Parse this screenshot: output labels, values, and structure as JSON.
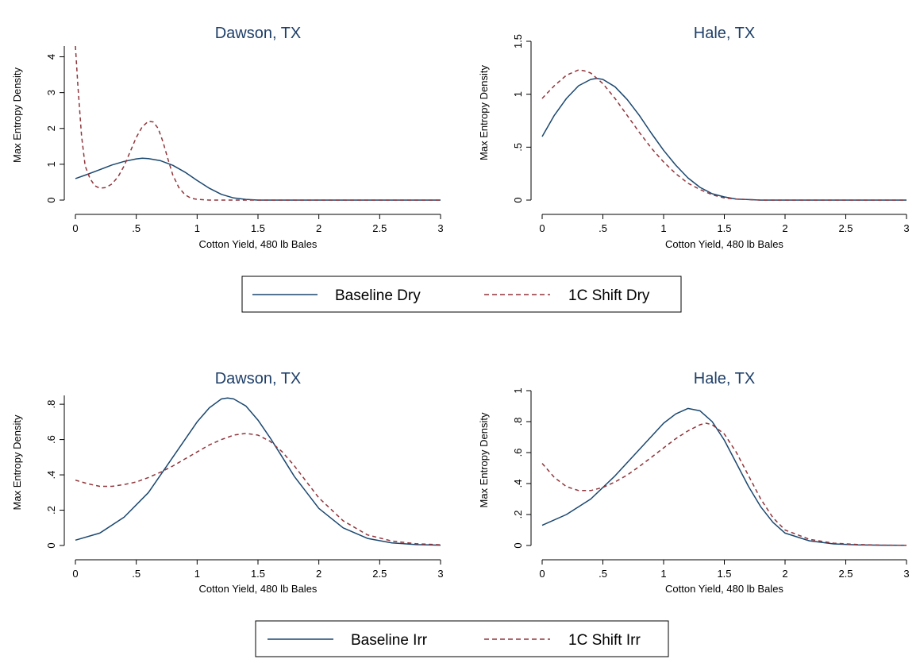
{
  "colors": {
    "baseline": "#1a476f",
    "shift": "#90353b",
    "title": "#1f3f68"
  },
  "legends": [
    {
      "baseline_label": "Baseline Dry",
      "shift_label": "1C Shift Dry"
    },
    {
      "baseline_label": "Baseline Irr",
      "shift_label": "1C Shift Irr"
    }
  ],
  "chart_data": [
    {
      "type": "line",
      "title": "Dawson, TX",
      "xlabel": "Cotton Yield, 480 lb Bales",
      "ylabel": "Max Entropy Density",
      "xlim": [
        0,
        3
      ],
      "ylim": [
        0,
        4.3
      ],
      "xticks": [
        0,
        0.5,
        1,
        1.5,
        2,
        2.5,
        3
      ],
      "xtick_labels": [
        "0",
        ".5",
        "1",
        "1.5",
        "2",
        "2.5",
        "3"
      ],
      "yticks": [
        0,
        1,
        2,
        3,
        4
      ],
      "ytick_labels": [
        "0",
        "1",
        "2",
        "3",
        "4"
      ],
      "series": [
        {
          "name": "Baseline Dry",
          "style": "solid",
          "x": [
            0,
            0.1,
            0.2,
            0.3,
            0.4,
            0.5,
            0.55,
            0.6,
            0.7,
            0.8,
            0.9,
            1.0,
            1.1,
            1.2,
            1.3,
            1.4,
            1.5,
            2.0,
            2.5,
            3.0
          ],
          "y": [
            0.6,
            0.72,
            0.85,
            0.98,
            1.08,
            1.15,
            1.17,
            1.16,
            1.1,
            0.97,
            0.78,
            0.55,
            0.33,
            0.16,
            0.06,
            0.02,
            0.0,
            0.0,
            0.0,
            0.0
          ]
        },
        {
          "name": "1C Shift Dry",
          "style": "dashed",
          "x": [
            0,
            0.02,
            0.05,
            0.08,
            0.12,
            0.16,
            0.2,
            0.25,
            0.3,
            0.35,
            0.4,
            0.45,
            0.5,
            0.55,
            0.6,
            0.64,
            0.68,
            0.72,
            0.76,
            0.8,
            0.85,
            0.9,
            0.95,
            1.0,
            1.1,
            1.5,
            2.0,
            2.5,
            3.0
          ],
          "y": [
            4.3,
            3.2,
            1.8,
            0.95,
            0.6,
            0.4,
            0.33,
            0.35,
            0.45,
            0.65,
            0.95,
            1.35,
            1.75,
            2.05,
            2.2,
            2.18,
            2.0,
            1.62,
            1.15,
            0.7,
            0.35,
            0.15,
            0.05,
            0.02,
            0.0,
            0.0,
            0.0,
            0.0,
            0.0
          ]
        }
      ]
    },
    {
      "type": "line",
      "title": "Hale, TX",
      "xlabel": "Cotton Yield, 480 lb Bales",
      "ylabel": "Max Entropy Density",
      "xlim": [
        0,
        3
      ],
      "ylim": [
        0,
        1.5
      ],
      "xticks": [
        0,
        0.5,
        1,
        1.5,
        2,
        2.5,
        3
      ],
      "xtick_labels": [
        "0",
        ".5",
        "1",
        "1.5",
        "2",
        "2.5",
        "3"
      ],
      "yticks": [
        0,
        0.5,
        1,
        1.5
      ],
      "ytick_labels": [
        "0",
        ".5",
        "1",
        "1.5"
      ],
      "series": [
        {
          "name": "Baseline Dry",
          "style": "solid",
          "x": [
            0,
            0.1,
            0.2,
            0.3,
            0.4,
            0.45,
            0.5,
            0.6,
            0.7,
            0.8,
            0.9,
            1.0,
            1.1,
            1.2,
            1.3,
            1.4,
            1.5,
            1.6,
            1.8,
            2.0,
            2.5,
            3.0
          ],
          "y": [
            0.6,
            0.8,
            0.96,
            1.08,
            1.14,
            1.15,
            1.14,
            1.07,
            0.95,
            0.8,
            0.63,
            0.47,
            0.33,
            0.21,
            0.12,
            0.06,
            0.03,
            0.01,
            0.0,
            0.0,
            0.0,
            0.0
          ]
        },
        {
          "name": "1C Shift Dry",
          "style": "dashed",
          "x": [
            0,
            0.1,
            0.2,
            0.3,
            0.35,
            0.4,
            0.5,
            0.6,
            0.7,
            0.8,
            0.9,
            1.0,
            1.1,
            1.2,
            1.3,
            1.4,
            1.5,
            1.6,
            1.8,
            2.0,
            2.5,
            3.0
          ],
          "y": [
            0.96,
            1.08,
            1.18,
            1.23,
            1.22,
            1.2,
            1.1,
            0.96,
            0.8,
            0.64,
            0.49,
            0.36,
            0.25,
            0.16,
            0.1,
            0.05,
            0.02,
            0.01,
            0.0,
            0.0,
            0.0,
            0.0
          ]
        }
      ]
    },
    {
      "type": "line",
      "title": "Dawson, TX",
      "xlabel": "Cotton Yield, 480 lb Bales",
      "ylabel": "Max Entropy Density",
      "xlim": [
        0,
        3
      ],
      "ylim": [
        0,
        0.85
      ],
      "xticks": [
        0,
        0.5,
        1,
        1.5,
        2,
        2.5,
        3
      ],
      "xtick_labels": [
        "0",
        ".5",
        "1",
        "1.5",
        "2",
        "2.5",
        "3"
      ],
      "yticks": [
        0,
        0.2,
        0.4,
        0.6,
        0.8
      ],
      "ytick_labels": [
        "0",
        ".2",
        ".4",
        ".6",
        ".8"
      ],
      "series": [
        {
          "name": "Baseline Irr",
          "style": "solid",
          "x": [
            0,
            0.2,
            0.4,
            0.6,
            0.8,
            1.0,
            1.1,
            1.2,
            1.25,
            1.3,
            1.4,
            1.5,
            1.6,
            1.7,
            1.8,
            2.0,
            2.2,
            2.4,
            2.6,
            2.8,
            3.0
          ],
          "y": [
            0.03,
            0.07,
            0.16,
            0.3,
            0.5,
            0.7,
            0.78,
            0.83,
            0.835,
            0.83,
            0.79,
            0.71,
            0.61,
            0.5,
            0.39,
            0.21,
            0.1,
            0.04,
            0.015,
            0.005,
            0.002
          ]
        },
        {
          "name": "1C Shift Irr",
          "style": "dashed",
          "x": [
            0,
            0.1,
            0.2,
            0.3,
            0.4,
            0.5,
            0.6,
            0.7,
            0.8,
            0.9,
            1.0,
            1.1,
            1.2,
            1.3,
            1.4,
            1.5,
            1.6,
            1.7,
            1.8,
            1.9,
            2.0,
            2.2,
            2.4,
            2.6,
            2.8,
            3.0
          ],
          "y": [
            0.37,
            0.35,
            0.335,
            0.335,
            0.345,
            0.36,
            0.385,
            0.415,
            0.45,
            0.49,
            0.53,
            0.57,
            0.6,
            0.625,
            0.635,
            0.625,
            0.59,
            0.53,
            0.45,
            0.36,
            0.27,
            0.14,
            0.06,
            0.025,
            0.01,
            0.004
          ]
        }
      ]
    },
    {
      "type": "line",
      "title": "Hale, TX",
      "xlabel": "Cotton Yield, 480 lb Bales",
      "ylabel": "Max Entropy Density",
      "xlim": [
        0,
        3
      ],
      "ylim": [
        0,
        1.0
      ],
      "xticks": [
        0,
        0.5,
        1,
        1.5,
        2,
        2.5,
        3
      ],
      "xtick_labels": [
        "0",
        ".5",
        "1",
        "1.5",
        "2",
        "2.5",
        "3"
      ],
      "yticks": [
        0,
        0.2,
        0.4,
        0.6,
        0.8,
        1
      ],
      "ytick_labels": [
        "0",
        ".2",
        ".4",
        ".6",
        ".8",
        "1"
      ],
      "series": [
        {
          "name": "Baseline Irr",
          "style": "solid",
          "x": [
            0,
            0.2,
            0.4,
            0.6,
            0.8,
            1.0,
            1.1,
            1.2,
            1.3,
            1.4,
            1.5,
            1.6,
            1.7,
            1.8,
            1.9,
            2.0,
            2.2,
            2.4,
            2.6,
            2.8,
            3.0
          ],
          "y": [
            0.13,
            0.2,
            0.3,
            0.45,
            0.62,
            0.79,
            0.85,
            0.885,
            0.87,
            0.8,
            0.68,
            0.53,
            0.38,
            0.25,
            0.15,
            0.08,
            0.03,
            0.01,
            0.004,
            0.002,
            0.001
          ]
        },
        {
          "name": "1C Shift Irr",
          "style": "dashed",
          "x": [
            0,
            0.1,
            0.2,
            0.3,
            0.4,
            0.5,
            0.6,
            0.7,
            0.8,
            0.9,
            1.0,
            1.1,
            1.2,
            1.3,
            1.35,
            1.4,
            1.5,
            1.6,
            1.7,
            1.8,
            1.9,
            2.0,
            2.2,
            2.4,
            2.6,
            2.8,
            3.0
          ],
          "y": [
            0.53,
            0.44,
            0.38,
            0.355,
            0.355,
            0.375,
            0.41,
            0.455,
            0.51,
            0.57,
            0.63,
            0.69,
            0.74,
            0.78,
            0.79,
            0.78,
            0.72,
            0.6,
            0.45,
            0.3,
            0.18,
            0.1,
            0.04,
            0.015,
            0.006,
            0.002,
            0.001
          ]
        }
      ]
    }
  ]
}
